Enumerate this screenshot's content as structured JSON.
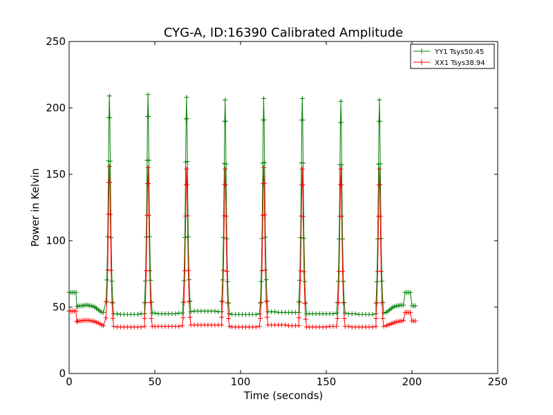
{
  "chart_data": {
    "type": "line",
    "title": "CYG-A, ID:16390 Calibrated Amplitude",
    "xlabel": "Time (seconds)",
    "ylabel": "Power in Kelvin",
    "xlim": [
      0,
      250
    ],
    "ylim": [
      0,
      250
    ],
    "xticks": [
      "0",
      "50",
      "100",
      "150",
      "200",
      "250"
    ],
    "yticks": [
      "0",
      "50",
      "100",
      "150",
      "200",
      "250"
    ],
    "grid": false,
    "legend_position": "top-right",
    "peak_times": [
      23.5,
      46,
      68.5,
      91,
      113.5,
      136,
      158.5,
      181
    ],
    "series": [
      {
        "name": "YY1 Tsys50.45",
        "color": "#008000",
        "marker": "+",
        "segments": [
          {
            "x": [
              0,
              1,
              2,
              3,
              4
            ],
            "y": [
              61,
              61,
              61,
              61,
              61
            ]
          },
          {
            "x": [
              4.5,
              5,
              6,
              7,
              8,
              9,
              10,
              11,
              12,
              13,
              14,
              15,
              16,
              17,
              18,
              19,
              20
            ],
            "y": [
              50.5,
              50.5,
              51,
              51,
              51,
              51.5,
              51.5,
              51.5,
              51,
              51,
              50.5,
              50,
              49,
              48,
              47,
              46,
              46
            ]
          },
          {
            "x": [
              26,
              28,
              30,
              32,
              34,
              36,
              38,
              40,
              42,
              44
            ],
            "y": [
              45,
              45,
              44.5,
              44.5,
              44.5,
              44.5,
              44.5,
              44.5,
              45,
              45
            ]
          },
          {
            "x": [
              48.5,
              50,
              52,
              54,
              56,
              58,
              60,
              62,
              64,
              66
            ],
            "y": [
              45.5,
              45.5,
              45,
              45,
              45,
              45,
              45,
              45,
              45.5,
              45.5
            ]
          },
          {
            "x": [
              71,
              73,
              75,
              77,
              79,
              81,
              83,
              85,
              87,
              89
            ],
            "y": [
              46.5,
              47,
              47,
              47,
              47,
              47,
              47,
              47,
              46.5,
              46.5
            ]
          },
          {
            "x": [
              93.5,
              95,
              97,
              99,
              101,
              103,
              105,
              107,
              109,
              111
            ],
            "y": [
              45,
              44.5,
              44.5,
              44.5,
              44.5,
              44.5,
              44.5,
              44.5,
              44.5,
              45
            ]
          },
          {
            "x": [
              116,
              118,
              120,
              122,
              124,
              126,
              128,
              130,
              132,
              134
            ],
            "y": [
              46.5,
              46.5,
              46.5,
              46,
              46,
              46,
              46,
              46,
              46,
              46
            ]
          },
          {
            "x": [
              138.5,
              140,
              142,
              144,
              146,
              148,
              150,
              152,
              154,
              156
            ],
            "y": [
              45,
              45,
              45,
              45,
              45,
              45,
              45,
              45,
              45,
              45.5
            ]
          },
          {
            "x": [
              161,
              163,
              165,
              167,
              169,
              171,
              173,
              175,
              177,
              179
            ],
            "y": [
              45.5,
              45,
              45,
              45,
              44.5,
              44.5,
              44.5,
              44.5,
              44.5,
              45
            ]
          },
          {
            "x": [
              183.5,
              185,
              186,
              187,
              188,
              189,
              190,
              191,
              192,
              193,
              194,
              195
            ],
            "y": [
              45.5,
              46,
              47,
              48,
              49,
              50,
              50.5,
              51,
              51,
              51.5,
              51.5,
              51.5
            ]
          },
          {
            "x": [
              196,
              197,
              198,
              199
            ],
            "y": [
              61,
              61,
              61,
              61
            ]
          },
          {
            "x": [
              200,
              201,
              202
            ],
            "y": [
              51,
              51,
              51
            ]
          }
        ],
        "peaks": [
          209,
          210,
          208,
          206,
          207,
          207,
          205,
          206
        ]
      },
      {
        "name": "XX1 Tsys38.94",
        "color": "#ff0000",
        "marker": "+",
        "segments": [
          {
            "x": [
              0,
              1,
              2,
              3,
              4
            ],
            "y": [
              47,
              47,
              47,
              47,
              47
            ]
          },
          {
            "x": [
              4.5,
              5,
              6,
              7,
              8,
              9,
              10,
              11,
              12,
              13,
              14,
              15,
              16,
              17,
              18,
              19,
              20
            ],
            "y": [
              39,
              39.5,
              39.5,
              39.5,
              40,
              40,
              40,
              40,
              40,
              39.5,
              39.5,
              39,
              38.5,
              38,
              37.5,
              36.5,
              36
            ]
          },
          {
            "x": [
              26,
              28,
              30,
              32,
              34,
              36,
              38,
              40,
              42,
              44
            ],
            "y": [
              35.5,
              35,
              35,
              35,
              35,
              35,
              35,
              35,
              35,
              35.5
            ]
          },
          {
            "x": [
              48.5,
              50,
              52,
              54,
              56,
              58,
              60,
              62,
              64,
              66
            ],
            "y": [
              35.5,
              35.5,
              35.5,
              35.5,
              35.5,
              35.5,
              35.5,
              35.5,
              35.5,
              36
            ]
          },
          {
            "x": [
              71,
              73,
              75,
              77,
              79,
              81,
              83,
              85,
              87,
              89
            ],
            "y": [
              36.5,
              36.5,
              36.5,
              36.5,
              36.5,
              36.5,
              36.5,
              36.5,
              36.5,
              36.5
            ]
          },
          {
            "x": [
              93.5,
              95,
              97,
              99,
              101,
              103,
              105,
              107,
              109,
              111
            ],
            "y": [
              35.5,
              35,
              35,
              35,
              35,
              35,
              35,
              35,
              35,
              35.5
            ]
          },
          {
            "x": [
              116,
              118,
              120,
              122,
              124,
              126,
              128,
              130,
              132,
              134
            ],
            "y": [
              36.5,
              36.5,
              36.5,
              36.5,
              36.5,
              36.5,
              36,
              36,
              36,
              36
            ]
          },
          {
            "x": [
              138.5,
              140,
              142,
              144,
              146,
              148,
              150,
              152,
              154,
              156
            ],
            "y": [
              35,
              35,
              35,
              35,
              35,
              35,
              35,
              35.5,
              35.5,
              35.5
            ]
          },
          {
            "x": [
              161,
              163,
              165,
              167,
              169,
              171,
              173,
              175,
              177,
              179
            ],
            "y": [
              35.5,
              35.5,
              35,
              35,
              35,
              35,
              35,
              35,
              35,
              35.5
            ]
          },
          {
            "x": [
              183.5,
              185,
              186,
              187,
              188,
              189,
              190,
              191,
              192,
              193,
              194,
              195
            ],
            "y": [
              35.5,
              36,
              36.5,
              37,
              37.5,
              38,
              38.5,
              39,
              39,
              39.5,
              39.5,
              40
            ]
          },
          {
            "x": [
              196,
              197,
              198,
              199
            ],
            "y": [
              46,
              46,
              46,
              46
            ]
          },
          {
            "x": [
              200,
              201,
              202
            ],
            "y": [
              39.5,
              39.5,
              39.5
            ]
          }
        ],
        "peaks": [
          156,
          155,
          154,
          154,
          155,
          154,
          154,
          154
        ]
      }
    ]
  }
}
